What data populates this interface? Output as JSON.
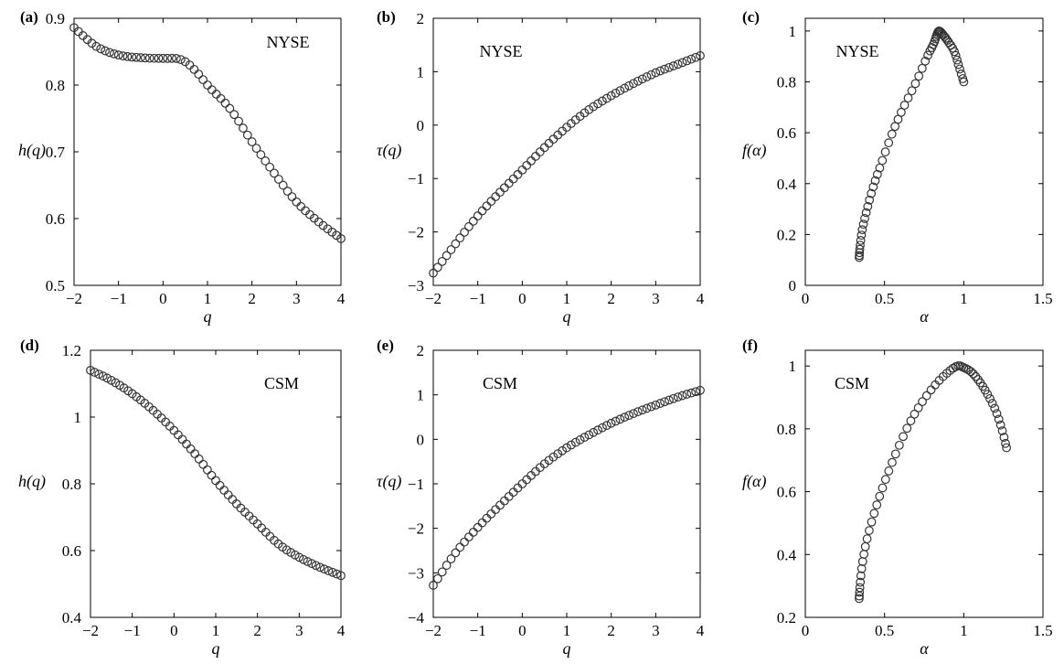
{
  "chart_data": [
    {
      "type": "scatter",
      "panel_label": "(a)",
      "annotation": "NYSE",
      "xlabel": "q",
      "ylabel": "h(q)",
      "xlim": [
        -2,
        4
      ],
      "ylim": [
        0.5,
        0.9
      ],
      "xticks": [
        -2,
        -1,
        0,
        1,
        2,
        3,
        4
      ],
      "yticks": [
        0.5,
        0.6,
        0.7,
        0.8,
        0.9
      ],
      "xticklabels": [
        "−2",
        "−1",
        "0",
        "1",
        "2",
        "3",
        "4"
      ],
      "yticklabels": [
        "0.5",
        "0.6",
        "0.7",
        "0.8",
        "0.9"
      ],
      "x": [
        -2,
        -1.5,
        -1,
        -0.5,
        0,
        0.25,
        0.5,
        0.75,
        1,
        1.5,
        2,
        2.5,
        3,
        3.5,
        4
      ],
      "y": [
        0.886,
        0.858,
        0.845,
        0.841,
        0.84,
        0.84,
        0.835,
        0.82,
        0.8,
        0.765,
        0.715,
        0.668,
        0.625,
        0.595,
        0.57
      ]
    },
    {
      "type": "scatter",
      "panel_label": "(b)",
      "annotation": "NYSE",
      "xlabel": "q",
      "ylabel": "τ(q)",
      "xlim": [
        -2,
        4
      ],
      "ylim": [
        -3,
        2
      ],
      "xticks": [
        -2,
        -1,
        0,
        1,
        2,
        3,
        4
      ],
      "yticks": [
        -3,
        -2,
        -1,
        0,
        1,
        2
      ],
      "xticklabels": [
        "−2",
        "−1",
        "0",
        "1",
        "2",
        "3",
        "4"
      ],
      "yticklabels": [
        "−3",
        "−2",
        "−1",
        "0",
        "1",
        "2"
      ],
      "x": [
        -2,
        -1,
        0,
        0.5,
        1,
        1.5,
        2,
        2.5,
        3,
        3.5,
        4
      ],
      "y": [
        -2.77,
        -1.7,
        -0.84,
        -0.42,
        -0.04,
        0.29,
        0.55,
        0.78,
        0.98,
        1.14,
        1.3
      ]
    },
    {
      "type": "scatter",
      "panel_label": "(c)",
      "annotation": "NYSE",
      "xlabel": "α",
      "ylabel": "f(α)",
      "xlim": [
        0,
        1.5
      ],
      "ylim": [
        0,
        1.05
      ],
      "xticks": [
        0,
        0.5,
        1,
        1.5
      ],
      "yticks": [
        0,
        0.2,
        0.4,
        0.6,
        0.8,
        1
      ],
      "xticklabels": [
        "0",
        "0.5",
        "1",
        "1.5"
      ],
      "yticklabels": [
        "0",
        "0.2",
        "0.4",
        "0.6",
        "0.8",
        "1"
      ],
      "x": [
        0.34,
        0.345,
        0.36,
        0.39,
        0.43,
        0.48,
        0.55,
        0.62,
        0.7,
        0.77,
        0.81,
        0.83,
        0.845,
        0.87,
        0.9,
        0.94,
        0.97,
        1.0
      ],
      "y": [
        0.11,
        0.15,
        0.22,
        0.3,
        0.39,
        0.48,
        0.6,
        0.7,
        0.8,
        0.9,
        0.95,
        0.985,
        1.0,
        0.985,
        0.96,
        0.92,
        0.86,
        0.8
      ]
    },
    {
      "type": "scatter",
      "panel_label": "(d)",
      "annotation": "CSM",
      "xlabel": "q",
      "ylabel": "h(q)",
      "xlim": [
        -2,
        4
      ],
      "ylim": [
        0.4,
        1.2
      ],
      "xticks": [
        -2,
        -1,
        0,
        1,
        2,
        3,
        4
      ],
      "yticks": [
        0.4,
        0.6,
        0.8,
        1,
        1.2
      ],
      "xticklabels": [
        "−2",
        "−1",
        "0",
        "1",
        "2",
        "3",
        "4"
      ],
      "yticklabels": [
        "0.4",
        "0.6",
        "0.8",
        "1",
        "1.2"
      ],
      "x": [
        -2,
        -1.5,
        -1,
        -0.5,
        0,
        0.5,
        1,
        1.5,
        2,
        2.5,
        3,
        3.5,
        4
      ],
      "y": [
        1.14,
        1.11,
        1.07,
        1.02,
        0.96,
        0.89,
        0.81,
        0.74,
        0.68,
        0.62,
        0.58,
        0.55,
        0.525
      ]
    },
    {
      "type": "scatter",
      "panel_label": "(e)",
      "annotation": "CSM",
      "xlabel": "q",
      "ylabel": "τ(q)",
      "xlim": [
        -2,
        4
      ],
      "ylim": [
        -4,
        2
      ],
      "xticks": [
        -2,
        -1,
        0,
        1,
        2,
        3,
        4
      ],
      "yticks": [
        -4,
        -3,
        -2,
        -1,
        0,
        1,
        2
      ],
      "xticklabels": [
        "−2",
        "−1",
        "0",
        "1",
        "2",
        "3",
        "4"
      ],
      "yticklabels": [
        "−4",
        "−3",
        "−2",
        "−1",
        "0",
        "1",
        "2"
      ],
      "x": [
        -2,
        -1.5,
        -1,
        -0.5,
        0,
        0.5,
        1,
        1.5,
        2,
        2.5,
        3,
        3.5,
        4
      ],
      "y": [
        -3.28,
        -2.55,
        -1.98,
        -1.48,
        -1.0,
        -0.55,
        -0.19,
        0.1,
        0.36,
        0.58,
        0.77,
        0.95,
        1.1
      ]
    },
    {
      "type": "scatter",
      "panel_label": "(f)",
      "annotation": "CSM",
      "xlabel": "α",
      "ylabel": "f(α)",
      "xlim": [
        0,
        1.5
      ],
      "ylim": [
        0.2,
        1.05
      ],
      "xticks": [
        0,
        0.5,
        1,
        1.5
      ],
      "yticks": [
        0.2,
        0.4,
        0.6,
        0.8,
        1
      ],
      "xticklabels": [
        "0",
        "0.5",
        "1",
        "1.5"
      ],
      "yticklabels": [
        "0.2",
        "0.4",
        "0.6",
        "0.8",
        "1"
      ],
      "x": [
        0.34,
        0.345,
        0.36,
        0.39,
        0.44,
        0.5,
        0.57,
        0.65,
        0.73,
        0.82,
        0.9,
        0.96,
        1.0,
        1.05,
        1.1,
        1.15,
        1.2,
        1.24,
        1.27
      ],
      "y": [
        0.26,
        0.3,
        0.37,
        0.45,
        0.54,
        0.63,
        0.72,
        0.81,
        0.88,
        0.94,
        0.98,
        1.0,
        0.995,
        0.98,
        0.95,
        0.91,
        0.86,
        0.8,
        0.74
      ]
    }
  ]
}
